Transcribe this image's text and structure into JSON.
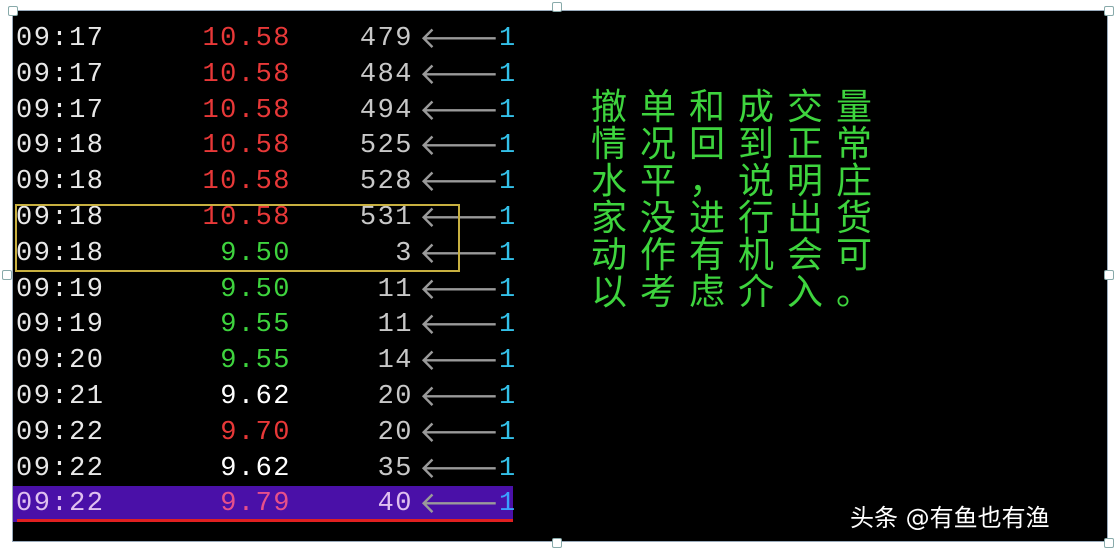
{
  "ticks": [
    {
      "time": "09:17",
      "price": "10.58",
      "price_color": "red",
      "volume": "479",
      "direction_icon": "left-arrow",
      "count": "1"
    },
    {
      "time": "09:17",
      "price": "10.58",
      "price_color": "red",
      "volume": "484",
      "direction_icon": "left-arrow",
      "count": "1"
    },
    {
      "time": "09:17",
      "price": "10.58",
      "price_color": "red",
      "volume": "494",
      "direction_icon": "left-arrow",
      "count": "1"
    },
    {
      "time": "09:18",
      "price": "10.58",
      "price_color": "red",
      "volume": "525",
      "direction_icon": "left-arrow",
      "count": "1"
    },
    {
      "time": "09:18",
      "price": "10.58",
      "price_color": "red",
      "volume": "528",
      "direction_icon": "left-arrow",
      "count": "1"
    },
    {
      "time": "09:18",
      "price": "10.58",
      "price_color": "red",
      "volume": "531",
      "direction_icon": "left-arrow",
      "count": "1"
    },
    {
      "time": "09:18",
      "price": "9.50",
      "price_color": "green",
      "volume": "3",
      "direction_icon": "left-arrow",
      "count": "1"
    },
    {
      "time": "09:19",
      "price": "9.50",
      "price_color": "green",
      "volume": "11",
      "direction_icon": "left-arrow",
      "count": "1"
    },
    {
      "time": "09:19",
      "price": "9.55",
      "price_color": "green",
      "volume": "11",
      "direction_icon": "left-arrow",
      "count": "1"
    },
    {
      "time": "09:20",
      "price": "9.55",
      "price_color": "green",
      "volume": "14",
      "direction_icon": "left-arrow",
      "count": "1"
    },
    {
      "time": "09:21",
      "price": "9.62",
      "price_color": "white",
      "volume": "20",
      "direction_icon": "left-arrow",
      "count": "1"
    },
    {
      "time": "09:22",
      "price": "9.70",
      "price_color": "red",
      "volume": "20",
      "direction_icon": "left-arrow",
      "count": "1"
    },
    {
      "time": "09:22",
      "price": "9.62",
      "price_color": "white",
      "volume": "35",
      "direction_icon": "left-arrow",
      "count": "1"
    },
    {
      "time": "09:22",
      "price": "9.79",
      "price_color": "red",
      "volume": "40",
      "direction_icon": "left-arrow",
      "count": "1",
      "selected": true
    }
  ],
  "annotation_box_rows": [
    5,
    6
  ],
  "note": "撤单和成交量情况回到正常水平，说明庄家没进行出货动作有机会可以考虑介入。",
  "watermark": "头条 @有鱼也有渔",
  "colors": {
    "background": "#000000",
    "up": "#e83838",
    "down": "#3ed43e",
    "flat": "#ffffff",
    "count": "#33c0e8",
    "highlight": "#4a10a8",
    "box": "#c8b040",
    "note": "#3ed43e"
  }
}
